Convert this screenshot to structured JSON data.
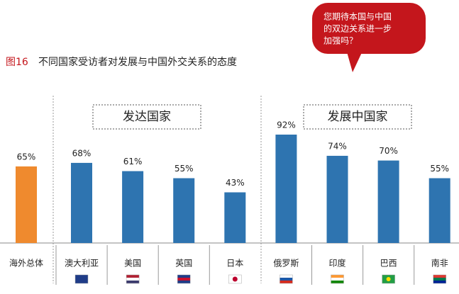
{
  "chart_data": {
    "type": "bar",
    "figure_label": "图16",
    "title": "不同国家受访者对发展与中国外交关系的态度",
    "annotation": [
      "您期待本国与中国",
      "的双边关系进一步",
      "加强吗？"
    ],
    "groups": [
      "发达国家",
      "发展中国家"
    ],
    "categories": [
      "海外总体",
      "澳大利亚",
      "美国",
      "英国",
      "日本",
      "俄罗斯",
      "印度",
      "巴西",
      "南非"
    ],
    "values": [
      65,
      68,
      61,
      55,
      43,
      92,
      74,
      70,
      55
    ],
    "value_labels": [
      "65%",
      "68%",
      "61%",
      "55%",
      "43%",
      "92%",
      "74%",
      "70%",
      "55%"
    ],
    "colors": [
      "#ef8a2e",
      "#2e74b0",
      "#2e74b0",
      "#2e74b0",
      "#2e74b0",
      "#2e74b0",
      "#2e74b0",
      "#2e74b0",
      "#2e74b0"
    ]
  }
}
